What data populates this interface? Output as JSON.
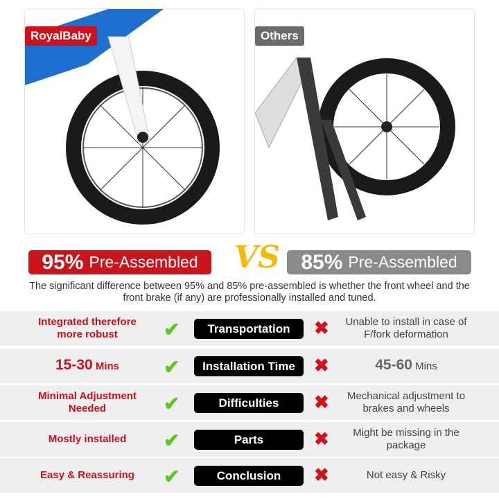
{
  "left_panel": {
    "badge": "RoyalBaby",
    "badge_color": "#d0111b"
  },
  "right_panel": {
    "badge": "Others",
    "badge_color": "#6b6b6b"
  },
  "banners": {
    "left": {
      "pct": "95%",
      "label": "Pre-Assembled",
      "color": "#c9141c"
    },
    "vs": "VS",
    "right": {
      "pct": "85%",
      "label": "Pre-Assembled",
      "color": "#8a8a8a"
    }
  },
  "description": "The significant difference between 95% and 85% pre-assembled is whether the front wheel and the front brake (if any) are professionally installed and tuned.",
  "rows": [
    {
      "left": "Integrated therefore more robust",
      "category": "Transportation",
      "right": "Unable to install in case of F/fork deformation"
    },
    {
      "left_big": "15-30",
      "left": "Mins",
      "category": "Installation Time",
      "right_big": "45-60",
      "right": "Mins"
    },
    {
      "left": "Minimal Adjustment Needed",
      "category": "Difficulties",
      "right": "Mechanical adjustment to brakes and wheels"
    },
    {
      "left": "Mostly installed",
      "category": "Parts",
      "right": "Might be missing in the package"
    },
    {
      "left": "Easy & Reassuring",
      "category": "Conclusion",
      "right": "Not easy & Risky"
    }
  ],
  "icons": {
    "check": "check-icon",
    "cross": "cross-icon"
  }
}
